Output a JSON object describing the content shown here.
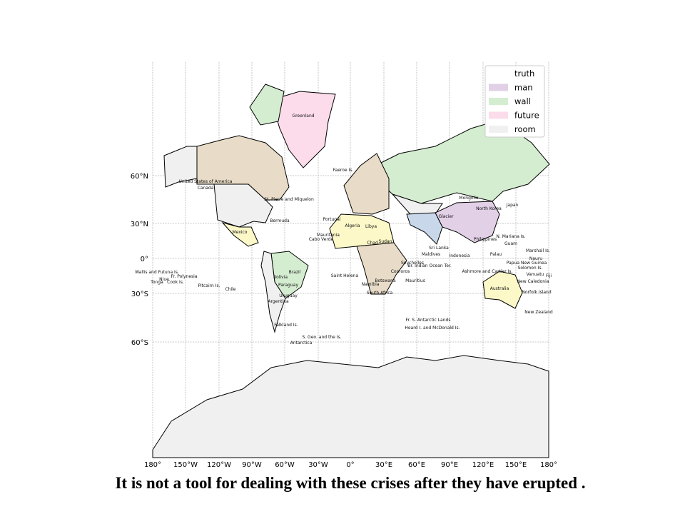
{
  "legend": {
    "items": [
      {
        "label": "truth",
        "color": "#ffffff"
      },
      {
        "label": "man",
        "color": "#e1d0e6"
      },
      {
        "label": "wall",
        "color": "#d4edd0"
      },
      {
        "label": "future",
        "color": "#fcdcea"
      },
      {
        "label": "room",
        "color": "#f0f0f0"
      }
    ]
  },
  "axes": {
    "x_ticks": [
      "180°",
      "150°W",
      "120°W",
      "90°W",
      "60°W",
      "30°W",
      "0°",
      "30°E",
      "60°E",
      "90°E",
      "120°E",
      "150°E",
      "180°"
    ],
    "y_ticks": [
      "60°N",
      "30°N",
      "0°",
      "30°S",
      "60°S"
    ]
  },
  "map_labels": [
    "Greenland",
    "United States of America",
    "Canada",
    "Faeroe Is.",
    "St. Pierre and Miquelon",
    "Bermuda",
    "Portugal",
    "Mexico",
    "Cabo Verde",
    "Mauritania",
    "Algeria",
    "Libya",
    "Chad",
    "Sudan",
    "Mongolia",
    "North Korea",
    "Japan",
    "Philippines",
    "N. Mariana Is.",
    "Guam",
    "Palau",
    "Sri Lanka",
    "Maldives",
    "Indonesia",
    "Br. Indian Ocean Ter.",
    "Seychelles",
    "Comoros",
    "Mauritius",
    "Saint Helena",
    "Brazil",
    "Bolivia",
    "Paraguay",
    "Uruguay",
    "Argentina",
    "Chile",
    "Pitcairn Is.",
    "Fr. Polynesia",
    "Niue",
    "Cook Is.",
    "Tonga",
    "Wallis and Futuna Is.",
    "Falkland Is.",
    "S. Geo. and the Is.",
    "Antarctica",
    "Fr. S. Antarctic Lands",
    "Heard I. and McDonald Is.",
    "Australia",
    "Norfolk Island",
    "New Zealand",
    "New Caledonia",
    "Vanuatu",
    "Fiji",
    "Ashmore and Cartier Is.",
    "Papua New Guinea",
    "Solomon Is.",
    "Nauru",
    "Marshall Is.",
    "Namibia",
    "Botswana",
    "South Africa",
    "Glacier"
  ],
  "caption": "It is not a tool for dealing with these crises after they have erupted ."
}
